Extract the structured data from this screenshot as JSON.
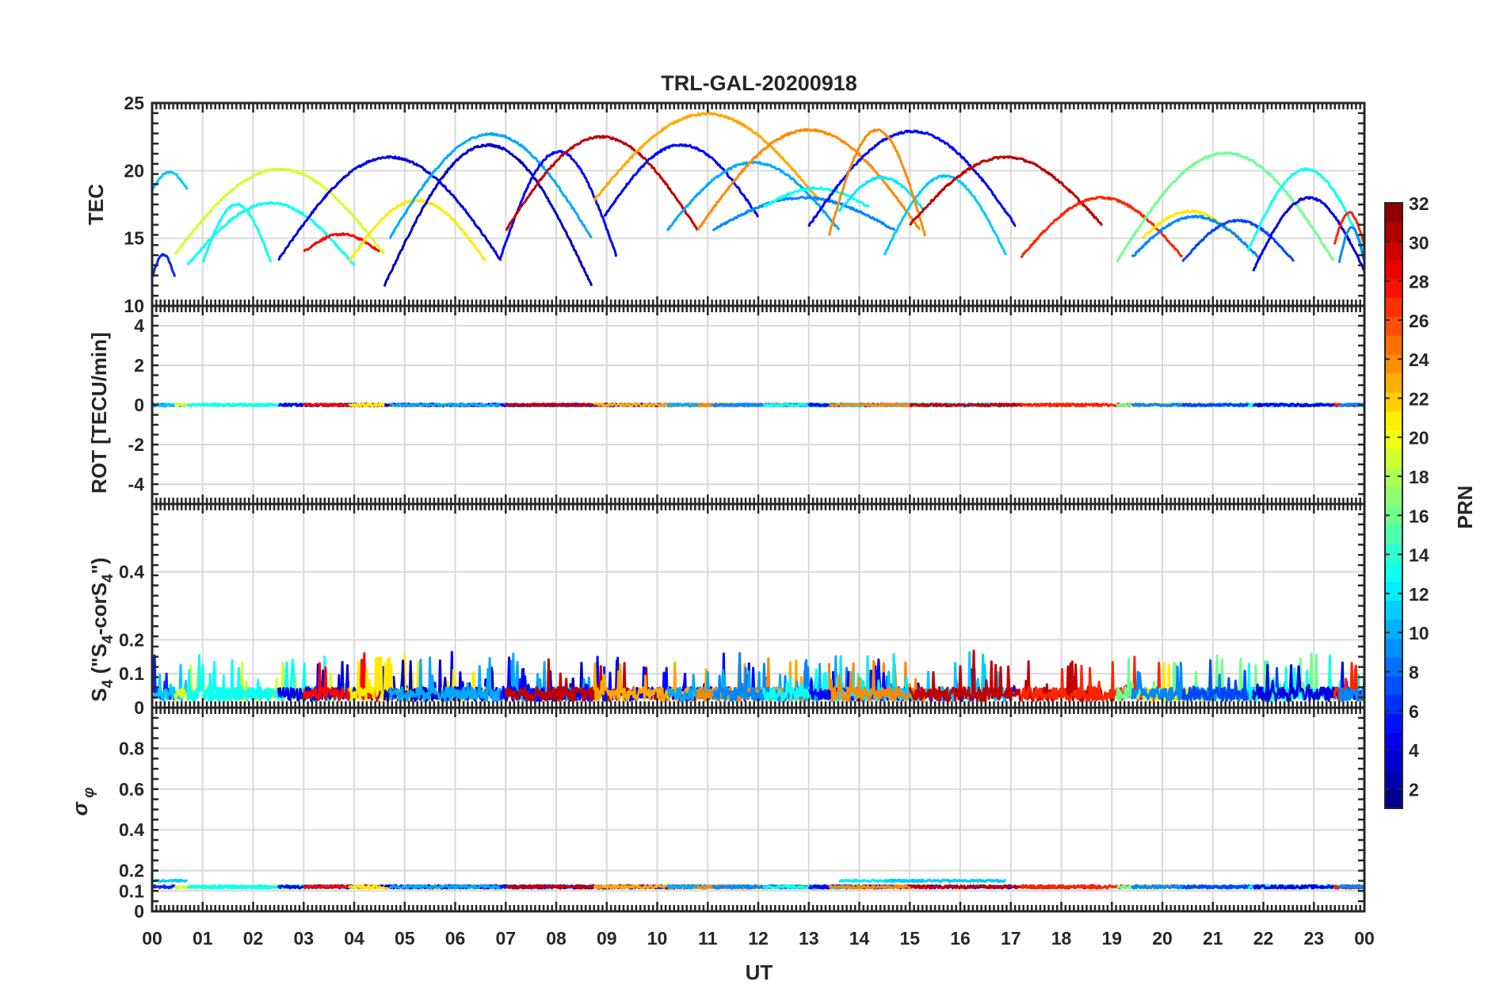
{
  "chart_data": {
    "type": "line",
    "title": "TRL-GAL-20200918",
    "xlabel": "UT",
    "x_range": [
      0,
      24
    ],
    "x_tick_labels": [
      "00",
      "01",
      "02",
      "03",
      "04",
      "05",
      "06",
      "07",
      "08",
      "09",
      "10",
      "11",
      "12",
      "13",
      "14",
      "15",
      "16",
      "17",
      "18",
      "19",
      "20",
      "21",
      "22",
      "23",
      "00"
    ],
    "grid": true,
    "colorbar": {
      "label": "PRN",
      "range": [
        1,
        32
      ],
      "ticks": [
        "2",
        "4",
        "6",
        "8",
        "10",
        "12",
        "14",
        "16",
        "18",
        "20",
        "22",
        "24",
        "26",
        "28",
        "30",
        "32"
      ],
      "placement": "right",
      "colormap": "jet"
    },
    "panels": [
      {
        "ylabel": "TEC",
        "ylim": [
          10,
          25
        ],
        "y_ticks": [
          "10",
          "15",
          "20",
          "25"
        ],
        "arcs": [
          {
            "prn": 6,
            "start": 0.0,
            "end": 0.45,
            "peak": 13.8,
            "edge": 12.1
          },
          {
            "prn": 11,
            "start": 0.0,
            "end": 0.7,
            "peak": 19.9,
            "edge": 18.6
          },
          {
            "prn": 19,
            "start": 0.45,
            "end": 4.6,
            "peak": 20.1,
            "edge": 13.8
          },
          {
            "prn": 13,
            "start": 0.7,
            "end": 4.0,
            "peak": 17.6,
            "edge": 13.0
          },
          {
            "prn": 13,
            "start": 1.0,
            "end": 2.35,
            "peak": 17.5,
            "edge": 13.2
          },
          {
            "prn": 4,
            "start": 2.5,
            "end": 6.9,
            "peak": 21.0,
            "edge": 13.4
          },
          {
            "prn": 28,
            "start": 3.0,
            "end": 4.5,
            "peak": 15.3,
            "edge": 14.0
          },
          {
            "prn": 21,
            "start": 3.9,
            "end": 6.6,
            "peak": 17.8,
            "edge": 13.3
          },
          {
            "prn": 3,
            "start": 4.6,
            "end": 8.7,
            "peak": 21.9,
            "edge": 11.5
          },
          {
            "prn": 10,
            "start": 4.7,
            "end": 8.7,
            "peak": 22.7,
            "edge": 15.0
          },
          {
            "prn": 5,
            "start": 6.9,
            "end": 9.2,
            "peak": 21.4,
            "edge": 13.6
          },
          {
            "prn": 30,
            "start": 7.0,
            "end": 10.8,
            "peak": 22.5,
            "edge": 15.6
          },
          {
            "prn": 5,
            "start": 8.95,
            "end": 12.0,
            "peak": 21.9,
            "edge": 16.6
          },
          {
            "prn": 23,
            "start": 8.75,
            "end": 13.2,
            "peak": 24.2,
            "edge": 17.8
          },
          {
            "prn": 10,
            "start": 10.2,
            "end": 13.6,
            "peak": 20.6,
            "edge": 15.6
          },
          {
            "prn": 24,
            "start": 10.8,
            "end": 15.2,
            "peak": 23.0,
            "edge": 15.6
          },
          {
            "prn": 9,
            "start": 11.1,
            "end": 14.7,
            "peak": 18.0,
            "edge": 15.6
          },
          {
            "prn": 13,
            "start": 12.1,
            "end": 14.2,
            "peak": 18.7,
            "edge": 17.3
          },
          {
            "prn": 5,
            "start": 13.0,
            "end": 17.1,
            "peak": 22.9,
            "edge": 15.9
          },
          {
            "prn": 12,
            "start": 13.6,
            "end": 15.3,
            "peak": 19.5,
            "edge": 17.0
          },
          {
            "prn": 11,
            "start": 14.5,
            "end": 16.9,
            "peak": 19.6,
            "edge": 13.8
          },
          {
            "prn": 24,
            "start": 13.4,
            "end": 15.3,
            "peak": 23.0,
            "edge": 15.2
          },
          {
            "prn": 30,
            "start": 15.0,
            "end": 18.8,
            "peak": 21.0,
            "edge": 16.0
          },
          {
            "prn": 27,
            "start": 17.2,
            "end": 20.4,
            "peak": 18.0,
            "edge": 13.6
          },
          {
            "prn": 16,
            "start": 19.1,
            "end": 23.4,
            "peak": 21.3,
            "edge": 13.3
          },
          {
            "prn": 21,
            "start": 19.6,
            "end": 21.5,
            "peak": 17.0,
            "edge": 15.0
          },
          {
            "prn": 9,
            "start": 19.4,
            "end": 21.9,
            "peak": 16.6,
            "edge": 13.6
          },
          {
            "prn": 7,
            "start": 20.4,
            "end": 22.6,
            "peak": 16.3,
            "edge": 13.3
          },
          {
            "prn": 13,
            "start": 21.7,
            "end": 24.0,
            "peak": 20.1,
            "edge": 14.1
          },
          {
            "prn": 4,
            "start": 21.8,
            "end": 24.0,
            "peak": 18.0,
            "edge": 12.6
          },
          {
            "prn": 27,
            "start": 23.4,
            "end": 24.0,
            "peak": 16.9,
            "edge": 14.5
          },
          {
            "prn": 9,
            "start": 23.5,
            "end": 24.0,
            "peak": 15.8,
            "edge": 13.2
          }
        ]
      },
      {
        "ylabel": "ROT [TECU/min]",
        "ylim": [
          -5,
          5
        ],
        "y_ticks": [
          "-4",
          "-2",
          "0",
          "2",
          "4"
        ],
        "typical_value": 0.0,
        "typical_spread": 0.12
      },
      {
        "ylabel": "S4 (\"S4-corS4\")",
        "ylabel_main": "S",
        "ylabel_sub": "4",
        "ylabel_rest_1": " (\"S",
        "ylabel_sub_2": "4",
        "ylabel_rest_2": "-corS",
        "ylabel_sub_3": "4",
        "ylabel_rest_3": "\")",
        "ylim": [
          0,
          0.6
        ],
        "y_ticks": [
          "0",
          "0.1",
          "0.2",
          "0.4"
        ],
        "typical_value": 0.05,
        "max_value": 0.16
      },
      {
        "ylabel": "σφ",
        "ylabel_main": "σ",
        "ylabel_sub": "φ",
        "ylim": [
          0,
          1
        ],
        "y_ticks": [
          "0",
          "0.1",
          "0.2",
          "0.4",
          "0.6",
          "0.8"
        ],
        "typical_value": 0.12,
        "elevated_value": 0.15
      }
    ]
  }
}
